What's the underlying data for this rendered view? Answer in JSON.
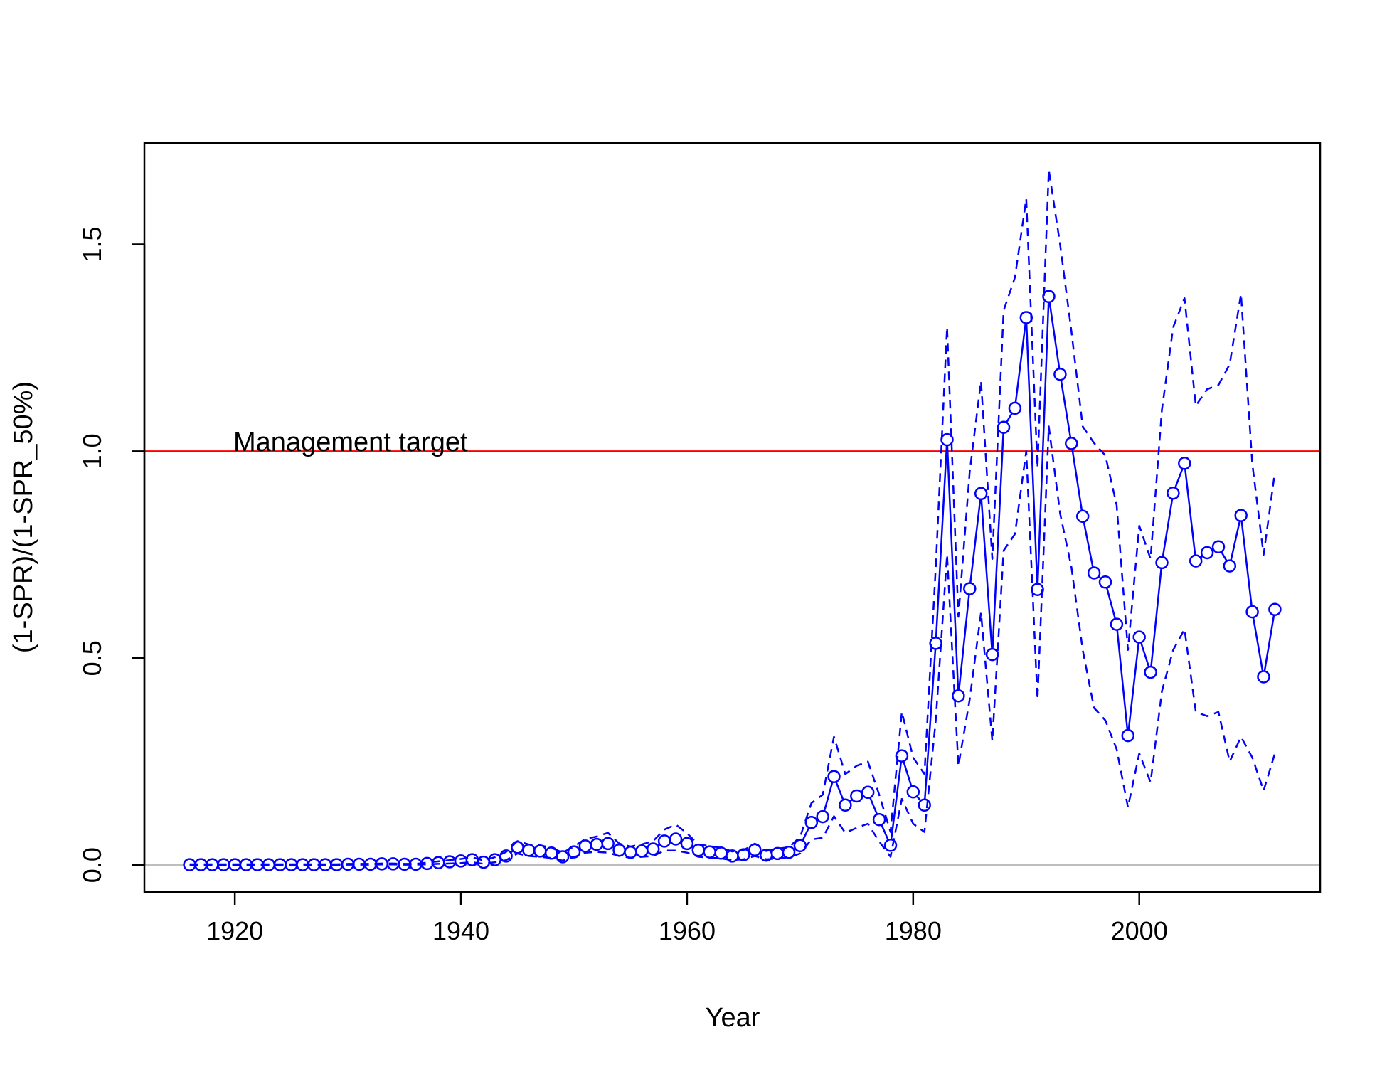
{
  "chart_data": {
    "type": "line",
    "title": "",
    "xlabel": "Year",
    "ylabel": "(1-SPR)/(1-SPR_50%)",
    "xlim": [
      1912,
      2016
    ],
    "ylim": [
      -0.065,
      1.745
    ],
    "xticks": [
      1920,
      1940,
      1960,
      1980,
      2000
    ],
    "yticks": [
      0.0,
      0.5,
      1.0,
      1.5
    ],
    "xtick_labels": [
      "1920",
      "1940",
      "1960",
      "1980",
      "2000"
    ],
    "ytick_labels": [
      "0.0",
      "0.5",
      "1.0",
      "1.5"
    ],
    "grid": false,
    "reference_lines": [
      {
        "y": 1.0,
        "color": "#ff0000",
        "label": "Management target"
      },
      {
        "y": 0.0,
        "color": "#bebebe",
        "label": ""
      }
    ],
    "annotations": [
      {
        "text": "Management target",
        "x": 1920,
        "y": 1.0
      }
    ],
    "x": [
      1916,
      1917,
      1918,
      1919,
      1920,
      1921,
      1922,
      1923,
      1924,
      1925,
      1926,
      1927,
      1928,
      1929,
      1930,
      1931,
      1932,
      1933,
      1934,
      1935,
      1936,
      1937,
      1938,
      1939,
      1940,
      1941,
      1942,
      1943,
      1944,
      1945,
      1946,
      1947,
      1948,
      1949,
      1950,
      1951,
      1952,
      1953,
      1954,
      1955,
      1956,
      1957,
      1958,
      1959,
      1960,
      1961,
      1962,
      1963,
      1964,
      1965,
      1966,
      1967,
      1968,
      1969,
      1970,
      1971,
      1972,
      1973,
      1974,
      1975,
      1976,
      1977,
      1978,
      1979,
      1980,
      1981,
      1982,
      1983,
      1984,
      1985,
      1986,
      1987,
      1988,
      1989,
      1990,
      1991,
      1992,
      1993,
      1994,
      1995,
      1996,
      1997,
      1998,
      1999,
      2000,
      2001,
      2002,
      2003,
      2004,
      2005,
      2006,
      2007,
      2008,
      2009,
      2010,
      2011,
      2012
    ],
    "series": [
      {
        "name": "",
        "role": "estimate",
        "color": "#0000ff",
        "line": "solid",
        "marker": "circle",
        "values": [
          0.001,
          0.001,
          0.001,
          0.001,
          0.001,
          0.001,
          0.001,
          0.001,
          0.001,
          0.001,
          0.001,
          0.001,
          0.001,
          0.001,
          0.002,
          0.002,
          0.002,
          0.003,
          0.003,
          0.002,
          0.002,
          0.004,
          0.006,
          0.008,
          0.01,
          0.013,
          0.007,
          0.013,
          0.022,
          0.043,
          0.036,
          0.034,
          0.029,
          0.02,
          0.032,
          0.046,
          0.05,
          0.052,
          0.036,
          0.031,
          0.034,
          0.039,
          0.058,
          0.063,
          0.052,
          0.036,
          0.032,
          0.029,
          0.022,
          0.025,
          0.037,
          0.024,
          0.028,
          0.031,
          0.047,
          0.103,
          0.117,
          0.214,
          0.145,
          0.167,
          0.176,
          0.11,
          0.048,
          0.264,
          0.177,
          0.145,
          0.536,
          1.028,
          0.409,
          0.668,
          0.898,
          0.509,
          1.058,
          1.104,
          1.323,
          0.666,
          1.374,
          1.186,
          1.019,
          0.843,
          0.706,
          0.684,
          0.582,
          0.313,
          0.551,
          0.466,
          0.731,
          0.899,
          0.971,
          0.735,
          0.755,
          0.769,
          0.723,
          0.845,
          0.612,
          0.455,
          0.618
        ]
      },
      {
        "name": "",
        "role": "upper interval",
        "color": "#0000ff",
        "line": "dashed",
        "marker": "none",
        "values": [
          0.002,
          0.002,
          0.002,
          0.002,
          0.002,
          0.002,
          0.002,
          0.002,
          0.002,
          0.002,
          0.002,
          0.002,
          0.002,
          0.002,
          0.003,
          0.003,
          0.003,
          0.004,
          0.004,
          0.003,
          0.003,
          0.006,
          0.009,
          0.012,
          0.015,
          0.019,
          0.011,
          0.019,
          0.032,
          0.058,
          0.05,
          0.048,
          0.042,
          0.03,
          0.045,
          0.063,
          0.069,
          0.078,
          0.052,
          0.045,
          0.05,
          0.058,
          0.086,
          0.098,
          0.077,
          0.05,
          0.046,
          0.042,
          0.033,
          0.036,
          0.052,
          0.034,
          0.04,
          0.043,
          0.068,
          0.15,
          0.17,
          0.31,
          0.22,
          0.24,
          0.25,
          0.17,
          0.08,
          0.37,
          0.26,
          0.22,
          0.72,
          1.3,
          0.6,
          0.95,
          1.17,
          0.74,
          1.34,
          1.42,
          1.61,
          0.96,
          1.68,
          1.5,
          1.29,
          1.06,
          1.02,
          0.99,
          0.87,
          0.52,
          0.82,
          0.74,
          1.1,
          1.3,
          1.37,
          1.11,
          1.15,
          1.16,
          1.21,
          1.38,
          0.97,
          0.75,
          0.95
        ]
      },
      {
        "name": "",
        "role": "lower interval",
        "color": "#0000ff",
        "line": "dashed",
        "marker": "none",
        "values": [
          0.0005,
          0.0005,
          0.0005,
          0.0005,
          0.0005,
          0.0005,
          0.0005,
          0.0005,
          0.0005,
          0.0005,
          0.0005,
          0.0005,
          0.0005,
          0.0005,
          0.001,
          0.001,
          0.001,
          0.0015,
          0.0015,
          0.001,
          0.001,
          0.002,
          0.003,
          0.004,
          0.005,
          0.007,
          0.003,
          0.007,
          0.012,
          0.028,
          0.022,
          0.02,
          0.017,
          0.011,
          0.019,
          0.03,
          0.032,
          0.03,
          0.022,
          0.018,
          0.02,
          0.022,
          0.035,
          0.035,
          0.03,
          0.02,
          0.018,
          0.016,
          0.012,
          0.014,
          0.022,
          0.014,
          0.016,
          0.019,
          0.028,
          0.062,
          0.066,
          0.118,
          0.078,
          0.09,
          0.1,
          0.057,
          0.02,
          0.16,
          0.1,
          0.08,
          0.35,
          0.75,
          0.24,
          0.4,
          0.61,
          0.3,
          0.76,
          0.8,
          1.0,
          0.4,
          1.06,
          0.85,
          0.72,
          0.52,
          0.38,
          0.35,
          0.28,
          0.14,
          0.27,
          0.2,
          0.42,
          0.52,
          0.57,
          0.37,
          0.36,
          0.37,
          0.25,
          0.31,
          0.26,
          0.18,
          0.27
        ]
      }
    ]
  }
}
